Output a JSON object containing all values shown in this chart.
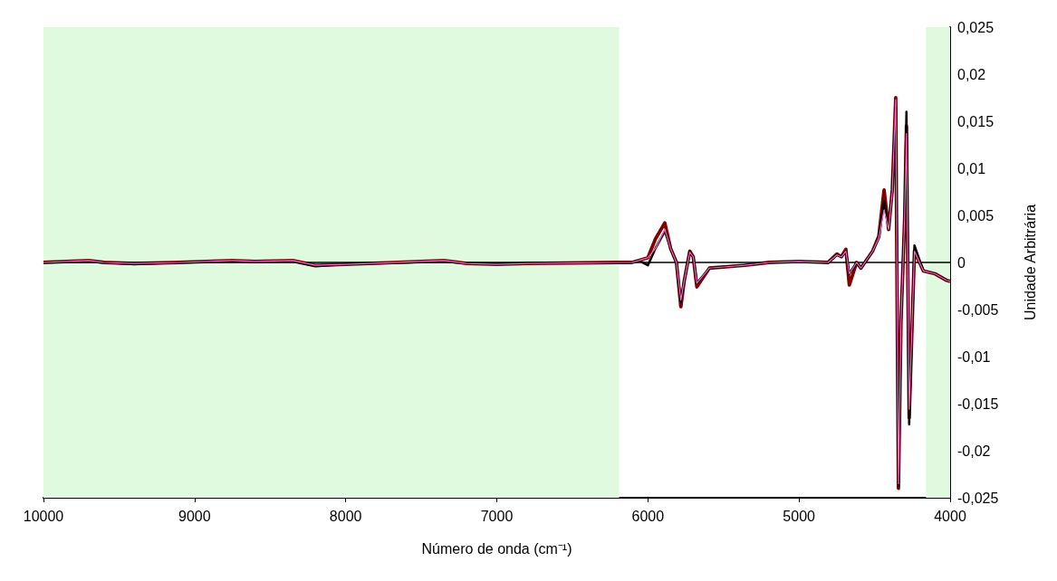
{
  "chart_data": {
    "type": "line",
    "xlabel": "Número de onda (cm⁻¹)",
    "ylabel": "Unidade Arbitrária",
    "x": [
      10000,
      9700,
      9600,
      9400,
      9100,
      8750,
      8600,
      8350,
      8200,
      8000,
      7350,
      7200,
      7000,
      6800,
      6200,
      6106,
      6060,
      6000,
      5950,
      5888,
      5850,
      5811,
      5782,
      5760,
      5723,
      5700,
      5676,
      5593,
      5357,
      5200,
      5000,
      4808,
      4749,
      4720,
      4690,
      4667,
      4619,
      4590,
      4513,
      4472,
      4437,
      4407,
      4383,
      4360,
      4342,
      4325,
      4301,
      4289,
      4271,
      4236,
      4177,
      4100,
      4024,
      4000
    ],
    "series": [
      {
        "color": "#800000",
        "values": [
          0,
          0.0002,
          0,
          -0.0001,
          0,
          0.0002,
          0.0001,
          0.0002,
          -0.0003,
          -0.0002,
          0.0002,
          -0.0001,
          -0.0002,
          -0.0001,
          0,
          0,
          0.0002,
          0.0005,
          0.0025,
          0.0042,
          0.0015,
          0,
          -0.0047,
          -0.002,
          0.0012,
          0.0006,
          -0.0026,
          -0.0006,
          -0.0003,
          0,
          0.0001,
          0,
          0.0009,
          0.0006,
          0.0014,
          -0.0024,
          0,
          -0.0006,
          0.0012,
          0.0028,
          0.0077,
          0.0035,
          0.0077,
          0.0175,
          -0.024,
          -0.0063,
          0.0047,
          0.0145,
          -0.0165,
          0.0012,
          -0.0009,
          -0.0012,
          -0.0019,
          -0.002
        ]
      },
      {
        "color": "#000000",
        "values": [
          0,
          0.0001,
          0,
          -0.0002,
          0,
          0.0001,
          0.0001,
          0.0001,
          -0.0004,
          -0.0002,
          0.0001,
          -0.0001,
          -0.0002,
          -0.0001,
          0,
          0,
          0.0002,
          -0.0003,
          0.0015,
          0.0033,
          0.0015,
          0,
          -0.0042,
          -0.002,
          0.0011,
          0.0006,
          -0.0022,
          -0.0006,
          -0.0003,
          0,
          0.0001,
          0,
          0.0008,
          0.0006,
          0.0012,
          -0.0012,
          0,
          -0.0006,
          0.0012,
          0.0026,
          0.0065,
          0.0035,
          0.0075,
          0.0165,
          -0.0238,
          -0.0063,
          0.0047,
          0.016,
          -0.0172,
          0.0018,
          -0.0009,
          -0.0012,
          -0.0019,
          -0.002
        ]
      },
      {
        "color": "#ff66cc",
        "values": [
          0,
          0.0002,
          0,
          -0.0001,
          0,
          0.0002,
          0.0001,
          0.0002,
          -0.0003,
          -0.0002,
          0.0002,
          -0.0001,
          -0.0002,
          -0.0001,
          0,
          0,
          0.0002,
          0.0005,
          0.0015,
          0.0035,
          0.0015,
          0,
          -0.004,
          -0.002,
          0.0011,
          0.0006,
          -0.0022,
          -0.0006,
          -0.0003,
          0,
          0.0001,
          0,
          0.0008,
          0.0006,
          0.0012,
          -0.0012,
          0,
          -0.0006,
          0.0012,
          0.0026,
          0.0056,
          0.0035,
          0.0075,
          0.0173,
          -0.0235,
          -0.0063,
          0.0047,
          0.0137,
          -0.0156,
          0.0012,
          -0.0009,
          -0.0012,
          -0.0019,
          -0.002
        ]
      }
    ],
    "xlim": [
      10000,
      4000
    ],
    "xticks": [
      10000,
      9000,
      8000,
      7000,
      6000,
      5000,
      4000
    ],
    "ylim": [
      -0.025,
      0.025
    ],
    "yticks": [
      {
        "value": -0.025,
        "label": "-0,025"
      },
      {
        "value": -0.02,
        "label": "-0,02"
      },
      {
        "value": -0.015,
        "label": "-0,015"
      },
      {
        "value": -0.01,
        "label": "-0,01"
      },
      {
        "value": -0.005,
        "label": "-0,005"
      },
      {
        "value": 0,
        "label": "0"
      },
      {
        "value": 0.005,
        "label": "0,005"
      },
      {
        "value": 0.01,
        "label": "0,01"
      },
      {
        "value": 0.015,
        "label": "0,015"
      },
      {
        "value": 0.02,
        "label": "0,02"
      },
      {
        "value": 0.025,
        "label": "0,025"
      }
    ],
    "ref_lines": [
      {
        "axis": "y",
        "value": 0,
        "color": "#000000"
      }
    ],
    "bands": [
      {
        "axis": "x",
        "from": 10000,
        "to": 6190,
        "color": "#e0fae0"
      },
      {
        "axis": "x",
        "from": 4160,
        "to": 4000,
        "color": "#e0fae0"
      }
    ],
    "grid": false,
    "marker": "none",
    "line_style": "solid"
  }
}
